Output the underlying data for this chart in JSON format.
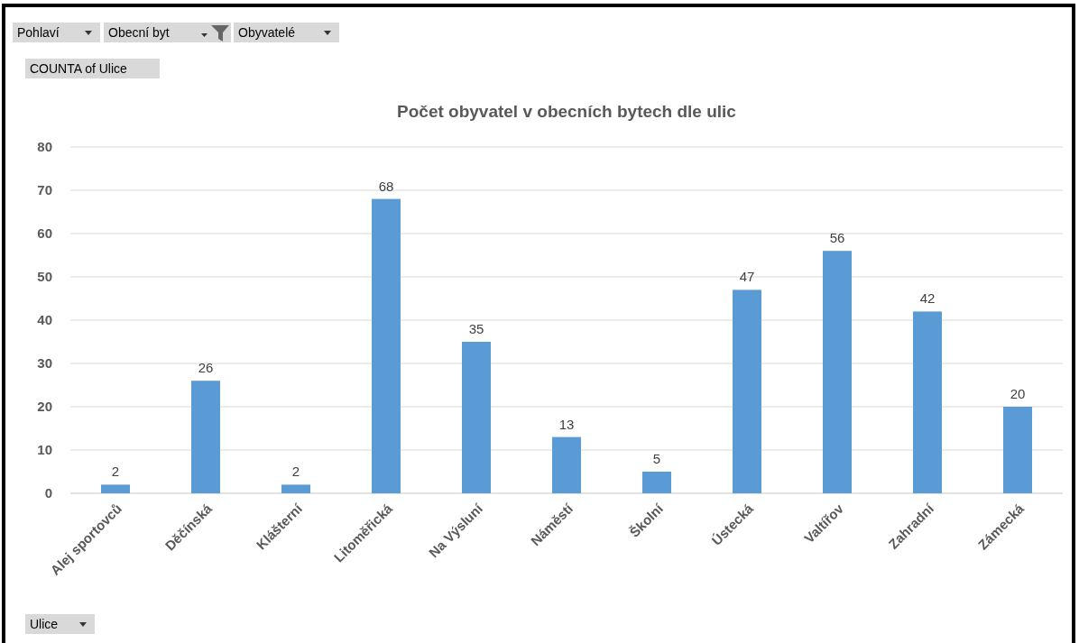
{
  "chart_data": {
    "type": "bar",
    "title": "Počet obyvatel v obecních bytech dle ulic",
    "categories": [
      "Alej sportovců",
      "Děčínská",
      "Klášterní",
      "Litoměřická",
      "Na Výsluní",
      "Náměstí",
      "Školní",
      "Ústecká",
      "Valtířov",
      "Zahradní",
      "Zámecká"
    ],
    "values": [
      2,
      26,
      2,
      68,
      35,
      13,
      5,
      47,
      56,
      42,
      20
    ],
    "color": "#5b9bd5",
    "ylim": [
      0,
      80
    ],
    "yticks": [
      0,
      10,
      20,
      30,
      40,
      50,
      60,
      70,
      80
    ],
    "grid": "y",
    "data_labels": true,
    "annotations": [
      "Pohlaví",
      "Obecní byt",
      "Obyvatelé",
      "COUNTA of Ulice",
      "Ulice"
    ]
  }
}
